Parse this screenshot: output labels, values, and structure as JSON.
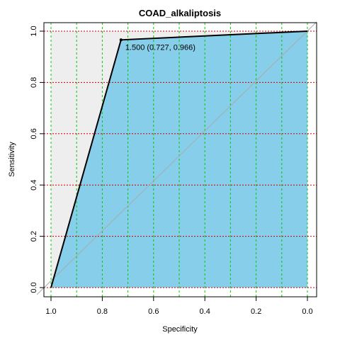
{
  "chart_data": {
    "type": "line",
    "title": "COAD_alkaliptosis",
    "xlabel": "Specificity",
    "ylabel": "Sensitivity",
    "x_reversed": true,
    "xlim": [
      1.0,
      0.0
    ],
    "ylim": [
      0.0,
      1.0
    ],
    "xticks": [
      "1.0",
      "0.8",
      "0.6",
      "0.4",
      "0.2",
      "0.0"
    ],
    "yticks": [
      "0.0",
      "0.2",
      "0.4",
      "0.6",
      "0.8",
      "1.0"
    ],
    "x_grid_values": [
      1.0,
      0.9,
      0.8,
      0.7,
      0.6,
      0.5,
      0.4,
      0.3,
      0.2,
      0.1,
      0.0
    ],
    "y_grid_values": [
      0.0,
      0.2,
      0.4,
      0.6,
      0.8,
      1.0
    ],
    "roc_points": [
      {
        "specificity": 1.0,
        "sensitivity": 0.0
      },
      {
        "specificity": 0.727,
        "sensitivity": 0.966
      },
      {
        "specificity": 0.0,
        "sensitivity": 1.0
      }
    ],
    "best_threshold_label": "1.500 (0.727, 0.966)",
    "best_point": {
      "specificity": 0.727,
      "sensitivity": 0.966
    },
    "colors": {
      "auc_fill": "#87ceeb",
      "max_auc_fill": "#eeeeee",
      "roc_line": "#000000",
      "diagonal": "#aaaaaa",
      "x_grid": "#00cc00",
      "y_grid": "#cc0000"
    }
  }
}
